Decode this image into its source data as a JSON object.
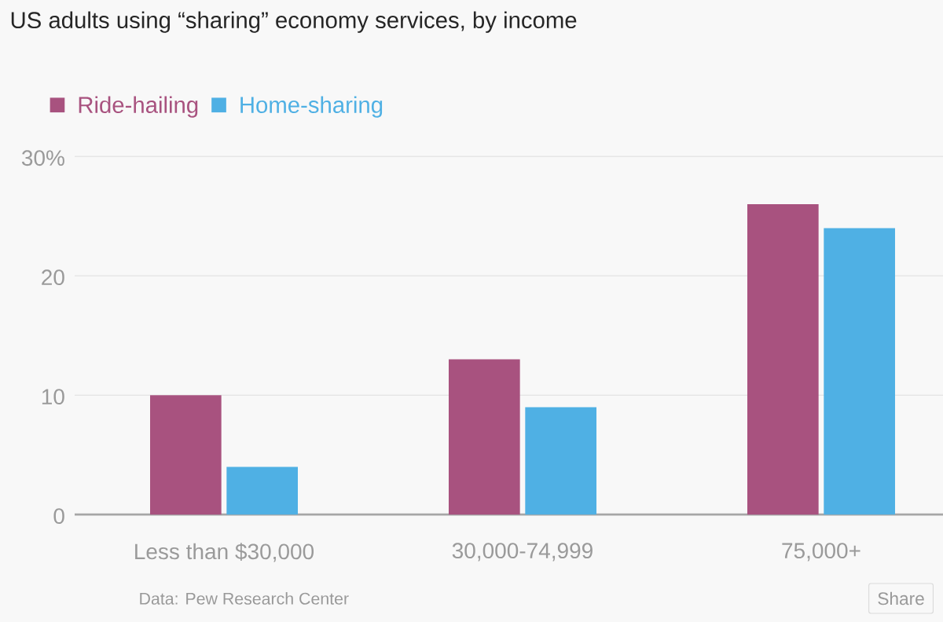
{
  "chart_data": {
    "type": "bar",
    "title": "US adults using “sharing” economy services, by income",
    "categories": [
      "Less than $30,000",
      "30,000-74,999",
      "75,000+"
    ],
    "series": [
      {
        "name": "Ride-hailing",
        "color": "#a8527f",
        "values": [
          10,
          13,
          26
        ]
      },
      {
        "name": "Home-sharing",
        "color": "#4fb0e4",
        "values": [
          4,
          9,
          24
        ]
      }
    ],
    "ylim": [
      0,
      30
    ],
    "yticks": [
      0,
      10,
      20,
      {
        "value": 30,
        "label": "30%"
      }
    ],
    "grid": "y",
    "legend": "top left",
    "annotations": [
      "Data: Pew Research Center",
      "Share"
    ]
  }
}
